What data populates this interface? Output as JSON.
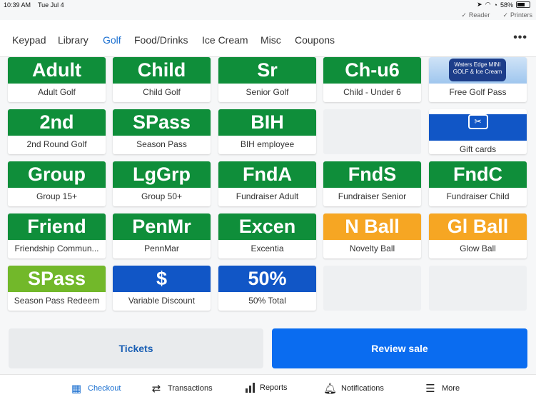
{
  "status": {
    "time": "10:39 AM",
    "date": "Tue Jul 4",
    "battery": "58%"
  },
  "sub_status": {
    "reader": "Reader",
    "printers": "Printers"
  },
  "tabs": [
    {
      "label": "Keypad"
    },
    {
      "label": "Library"
    },
    {
      "label": "Golf"
    },
    {
      "label": "Food/Drinks"
    },
    {
      "label": "Ice Cream"
    },
    {
      "label": "Misc"
    },
    {
      "label": "Coupons"
    }
  ],
  "active_tab": "Golf",
  "tiles": [
    {
      "code": "Adult",
      "name": "Adult Golf",
      "color": "#0f8e3a"
    },
    {
      "code": "Child",
      "name": "Child Golf",
      "color": "#0f8e3a"
    },
    {
      "code": "Sr",
      "name": "Senior Golf",
      "color": "#0f8e3a"
    },
    {
      "code": "Ch-u6",
      "name": "Child - Under 6",
      "color": "#0f8e3a"
    },
    {
      "logo_text": "Waters Edge MINI GOLF & Ice Cream",
      "name": "Free Golf Pass"
    },
    {
      "code": "2nd",
      "name": "2nd Round Golf",
      "color": "#0f8e3a"
    },
    {
      "code": "SPass",
      "name": "Season Pass",
      "color": "#0f8e3a"
    },
    {
      "code": "BIH",
      "name": "BIH employee",
      "color": "#0f8e3a"
    },
    {
      "empty": true
    },
    {
      "icon": "gift-card-icon",
      "name": "Gift cards",
      "color": "#1156c6"
    },
    {
      "code": "Group",
      "name": "Group 15+",
      "color": "#0f8e3a"
    },
    {
      "code": "LgGrp",
      "name": "Group 50+",
      "color": "#0f8e3a"
    },
    {
      "code": "FndA",
      "name": "Fundraiser Adult",
      "color": "#0f8e3a"
    },
    {
      "code": "FndS",
      "name": "Fundraiser Senior",
      "color": "#0f8e3a"
    },
    {
      "code": "FndC",
      "name": "Fundraiser Child",
      "color": "#0f8e3a"
    },
    {
      "code": "Friend",
      "name": "Friendship Commun...",
      "color": "#0f8e3a"
    },
    {
      "code": "PenMr",
      "name": "PennMar",
      "color": "#0f8e3a"
    },
    {
      "code": "Excen",
      "name": "Excentia",
      "color": "#0f8e3a"
    },
    {
      "code": "N Ball",
      "name": "Novelty Ball",
      "color": "#f6a623"
    },
    {
      "code": "Gl Ball",
      "name": "Glow Ball",
      "color": "#f6a623"
    },
    {
      "code": "SPass",
      "name": "Season Pass Redeem",
      "color": "#72b82a"
    },
    {
      "code": "$",
      "name": "Variable Discount",
      "color": "#1156c6"
    },
    {
      "code": "50%",
      "name": "50% Total",
      "color": "#1156c6"
    },
    {
      "empty": true
    },
    {
      "empty": true
    }
  ],
  "buttons": {
    "tickets": "Tickets",
    "review": "Review sale"
  },
  "bottom_nav": [
    {
      "label": "Checkout",
      "icon": "grid-icon"
    },
    {
      "label": "Transactions",
      "icon": "swap-icon"
    },
    {
      "label": "Reports",
      "icon": "bar-chart-icon"
    },
    {
      "label": "Notifications",
      "icon": "bell-icon"
    },
    {
      "label": "More",
      "icon": "menu-icon"
    }
  ],
  "active_nav": "Checkout",
  "colors": {
    "accent": "#0a6cf0",
    "active_text": "#1a6fd0"
  }
}
